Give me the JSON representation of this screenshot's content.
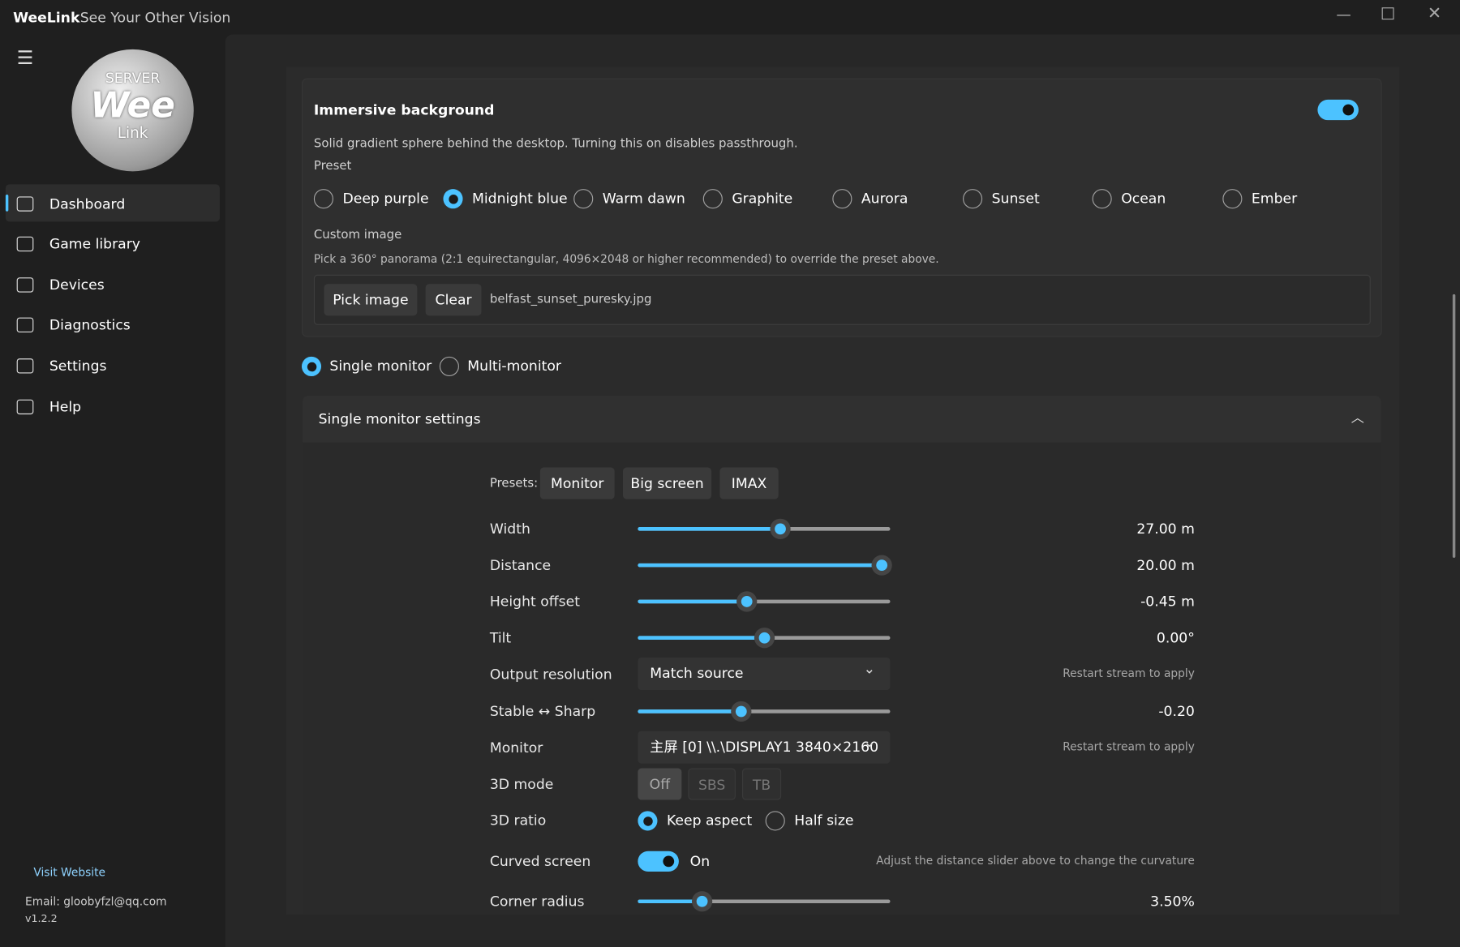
{
  "app": {
    "name": "WeeLink",
    "tagline": "See Your Other Vision"
  },
  "sidebar": {
    "logo": {
      "top": "SERVER",
      "main": "Wee",
      "bottom": "Link"
    },
    "items": [
      "Dashboard",
      "Game library",
      "Devices",
      "Diagnostics",
      "Settings",
      "Help"
    ],
    "footer": {
      "link": "Visit Website",
      "email": "Email: gloobyfzl@qq.com",
      "version": "v1.2.2"
    }
  },
  "background": {
    "title": "Immersive background",
    "description": "Solid gradient sphere behind the desktop. Turning this on disables passthrough.",
    "preset_label": "Preset",
    "presets": [
      "Deep purple",
      "Midnight blue",
      "Warm dawn",
      "Graphite",
      "Aurora",
      "Sunset",
      "Ocean",
      "Ember"
    ],
    "custom_label": "Custom image",
    "custom_description": "Pick a 360° panorama (2:1 equirectangular, 4096×2048 or higher recommended) to override the preset above.",
    "buttons": [
      "Pick image",
      "Clear"
    ],
    "filename": "belfast_sunset_puresky.jpg"
  },
  "modes": [
    "Single monitor",
    "Multi-monitor"
  ],
  "single": {
    "title": "Single monitor settings",
    "presets_label": "Presets:",
    "presets": [
      "Monitor",
      "Big screen",
      "IMAX"
    ],
    "width": {
      "label": "Width",
      "value": "27.00 m"
    },
    "distance": {
      "label": "Distance",
      "value": "20.00 m"
    },
    "height": {
      "label": "Height offset",
      "value": "-0.45 m"
    },
    "tilt": {
      "label": "Tilt",
      "value": "0.00°"
    },
    "resolution": {
      "label": "Output resolution",
      "selected": "Match source",
      "note": "Restart stream to apply"
    },
    "sharp": {
      "label": "Stable ↔ Sharp",
      "value": "-0.20"
    },
    "monitor": {
      "label": "Monitor",
      "selected": "主屏 [0] \\\\.\\DISPLAY1 3840×2160",
      "note": "Restart stream to apply"
    },
    "mode3d": {
      "label": "3D mode",
      "options": [
        "Off",
        "SBS",
        "TB"
      ]
    },
    "ratio3d": {
      "label": "3D ratio",
      "options": [
        "Keep aspect",
        "Half size"
      ]
    },
    "curved": {
      "label": "Curved screen",
      "state": "On",
      "note": "Adjust the distance slider above to change the curvature"
    },
    "corner": {
      "label": "Corner radius",
      "value": "3.50%"
    }
  }
}
